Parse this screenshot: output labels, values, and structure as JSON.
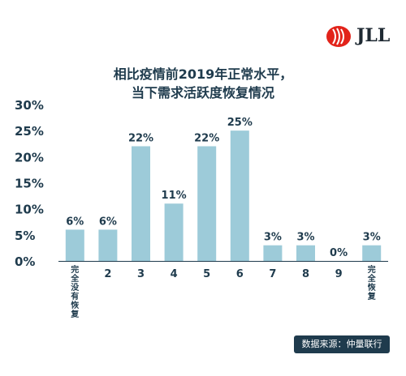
{
  "brand": {
    "logo_text": "JLL"
  },
  "chart_data": {
    "type": "bar",
    "title_line1": "相比疫情前2019年正常水平，",
    "title_line2": "当下需求活跃度恢复情况",
    "categories": [
      "完全没有恢复",
      "2",
      "3",
      "4",
      "5",
      "6",
      "7",
      "8",
      "9",
      "完全恢复"
    ],
    "values": [
      6,
      6,
      22,
      11,
      22,
      25,
      3,
      3,
      0,
      3
    ],
    "value_labels": [
      "6%",
      "6%",
      "22%",
      "11%",
      "22%",
      "25%",
      "3%",
      "3%",
      "0%",
      "3%"
    ],
    "y_ticks": [
      "30%",
      "25%",
      "20%",
      "15%",
      "10%",
      "5%",
      "0%"
    ],
    "ylim": [
      0,
      30
    ],
    "bar_color": "#9dcbd9",
    "baseline_color": "#1f3b4d",
    "text_color": "#1f3b4d",
    "source": "数据来源：仲量联行"
  }
}
